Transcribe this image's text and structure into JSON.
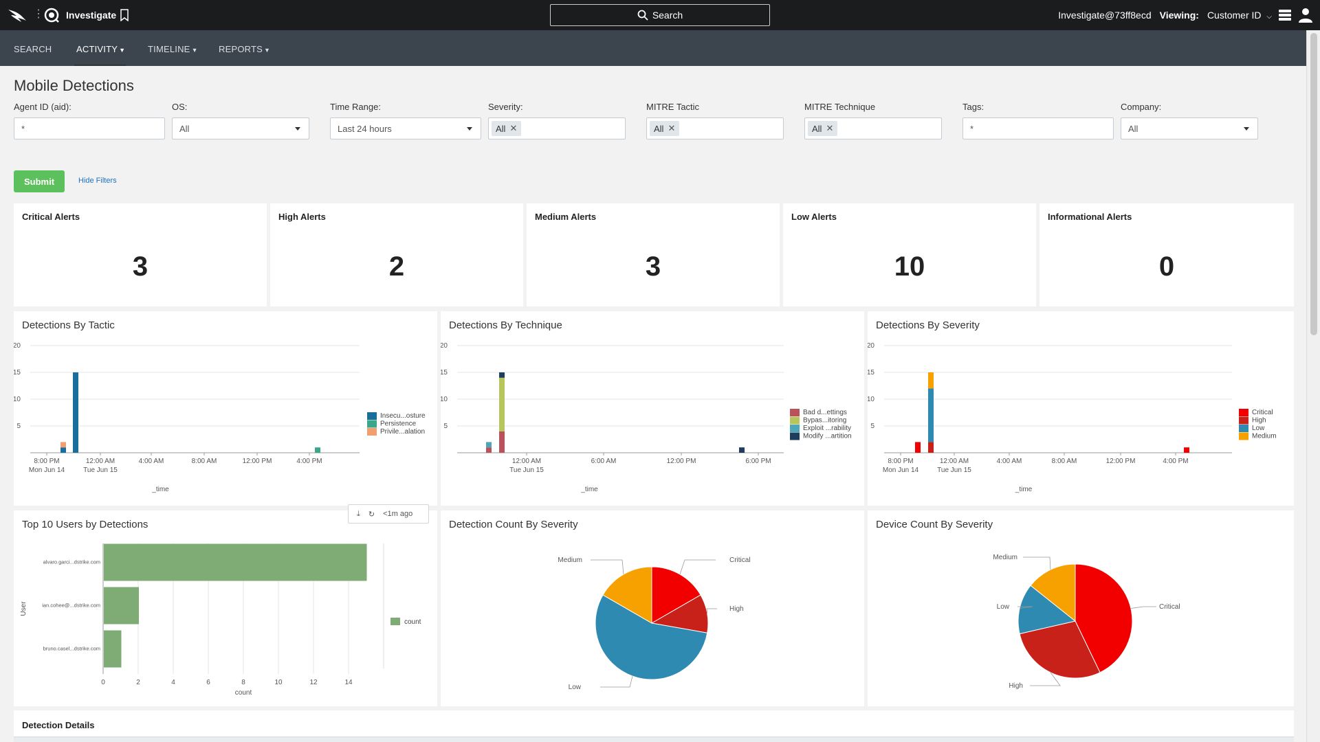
{
  "topbar": {
    "app_name": "Investigate",
    "search_label": "Search",
    "user": "Investigate@73ff8ecd",
    "viewing_label": "Viewing:",
    "viewing_value": "Customer ID"
  },
  "nav": {
    "items": [
      "SEARCH",
      "ACTIVITY",
      "TIMELINE",
      "REPORTS"
    ]
  },
  "page": {
    "title": "Mobile Detections"
  },
  "filters": {
    "agent_id": {
      "label": "Agent ID (aid):",
      "value": "*"
    },
    "os": {
      "label": "OS:",
      "value": "All"
    },
    "time_range": {
      "label": "Time Range:",
      "value": "Last 24 hours"
    },
    "severity": {
      "label": "Severity:",
      "tag": "All"
    },
    "mitre_tactic": {
      "label": "MITRE Tactic",
      "tag": "All"
    },
    "mitre_technique": {
      "label": "MITRE Technique",
      "tag": "All"
    },
    "tags": {
      "label": "Tags:",
      "value": "*"
    },
    "company": {
      "label": "Company:",
      "value": "All"
    }
  },
  "actions": {
    "submit": "Submit",
    "hide_filters": "Hide Filters"
  },
  "kpis": [
    {
      "title": "Critical Alerts",
      "value": "3"
    },
    {
      "title": "High Alerts",
      "value": "2"
    },
    {
      "title": "Medium Alerts",
      "value": "3"
    },
    {
      "title": "Low Alerts",
      "value": "10"
    },
    {
      "title": "Informational Alerts",
      "value": "0"
    }
  ],
  "panels": {
    "tactic_title": "Detections By Tactic",
    "technique_title": "Detections By Technique",
    "severity_title": "Detections By Severity",
    "users_title": "Top 10 Users by Detections",
    "count_sev_title": "Detection Count By Severity",
    "device_sev_title": "Device Count By Severity",
    "details_title": "Detection Details"
  },
  "time_chip": {
    "label": "<1m ago"
  },
  "colors": {
    "topbar": "#1a1c1e",
    "navbar": "#3c444d",
    "submit": "#5cc05c",
    "critical": "#f20000",
    "high": "#c8211a",
    "low": "#2e8ab0",
    "medium": "#f7a100",
    "users_bar": "#7fac75"
  },
  "chart_data": [
    {
      "type": "bar",
      "title": "Detections By Tactic",
      "xlabel": "_time",
      "stacked": true,
      "ylim": [
        0,
        20
      ],
      "yticks": [
        5,
        10,
        15,
        20
      ],
      "xtick_labels": [
        "8:00 PM\nMon Jun 14",
        "12:00 AM\nTue Jun 15",
        "4:00 AM",
        "8:00 AM",
        "12:00 PM",
        "4:00 PM"
      ],
      "legend": [
        "Insecu...osture",
        "Persistence",
        "Privile...alation"
      ],
      "legend_colors": [
        "#1a6e9c",
        "#3ba68a",
        "#f0a070"
      ],
      "bars": [
        {
          "time": "Mon Jun 14 ~10:00 PM",
          "segments": [
            1,
            0,
            1
          ]
        },
        {
          "time": "Mon Jun 14 ~11:00 PM",
          "segments": [
            15,
            0,
            0
          ]
        },
        {
          "time": "Tue Jun 15 ~4:30 PM",
          "segments": [
            0,
            1,
            0
          ]
        }
      ]
    },
    {
      "type": "bar",
      "title": "Detections By Technique",
      "xlabel": "_time",
      "stacked": true,
      "ylim": [
        0,
        20
      ],
      "yticks": [
        5,
        10,
        15,
        20
      ],
      "xtick_labels": [
        "12:00 AM\nTue Jun 15",
        "6:00 AM",
        "12:00 PM",
        "6:00 PM"
      ],
      "legend": [
        "Bad d...ettings",
        "Bypas...itoring",
        "Exploit ...rability",
        "Modify ...artition"
      ],
      "legend_colors": [
        "#b9525a",
        "#b6c65c",
        "#4da7b8",
        "#1e3d5c"
      ],
      "bars": [
        {
          "time": "Mon Jun 14 ~10:00 PM",
          "segments": [
            1,
            0,
            1,
            0
          ]
        },
        {
          "time": "Mon Jun 14 ~11:00 PM",
          "segments": [
            4,
            10,
            0,
            1
          ]
        },
        {
          "time": "Tue Jun 15 ~6:00 PM",
          "segments": [
            0,
            0,
            0,
            1
          ]
        }
      ]
    },
    {
      "type": "bar",
      "title": "Detections By Severity",
      "xlabel": "_time",
      "stacked": true,
      "ylim": [
        0,
        20
      ],
      "yticks": [
        5,
        10,
        15,
        20
      ],
      "xtick_labels": [
        "8:00 PM\nMon Jun 14",
        "12:00 AM\nTue Jun 15",
        "4:00 AM",
        "8:00 AM",
        "12:00 PM",
        "4:00 PM"
      ],
      "legend": [
        "Critical",
        "High",
        "Low",
        "Medium"
      ],
      "legend_colors": [
        "#f20000",
        "#c8211a",
        "#2e8ab0",
        "#f7a100"
      ],
      "bars": [
        {
          "time": "Mon Jun 14 ~10:00 PM",
          "segments": [
            2,
            0,
            0,
            0
          ]
        },
        {
          "time": "Mon Jun 14 ~11:00 PM",
          "segments": [
            0,
            2,
            10,
            3
          ]
        },
        {
          "time": "Tue Jun 15 ~4:30 PM",
          "segments": [
            1,
            0,
            0,
            0
          ]
        }
      ]
    },
    {
      "type": "bar",
      "orientation": "horizontal",
      "title": "Top 10 Users by Detections",
      "xlabel": "count",
      "ylabel": "User",
      "categories": [
        "alvaro.garci...dstrike.com",
        "ian.cohee@...dstrike.com",
        "bruno.casel...dstrike.com"
      ],
      "values": [
        15,
        2,
        1
      ],
      "xlim": [
        0,
        16
      ],
      "xticks": [
        0,
        2,
        4,
        6,
        8,
        10,
        12,
        14
      ],
      "legend": [
        "count"
      ]
    },
    {
      "type": "pie",
      "title": "Detection Count By Severity",
      "labels": [
        "Critical",
        "High",
        "Low",
        "Medium"
      ],
      "values": [
        3,
        2,
        10,
        3
      ],
      "colors": [
        "#f20000",
        "#c8211a",
        "#2e8ab0",
        "#f7a100"
      ]
    },
    {
      "type": "pie",
      "title": "Device Count By Severity",
      "labels": [
        "Critical",
        "High",
        "Low",
        "Medium"
      ],
      "values": [
        3,
        2,
        1,
        1
      ],
      "colors": [
        "#f20000",
        "#c8211a",
        "#2e8ab0",
        "#f7a100"
      ]
    }
  ]
}
